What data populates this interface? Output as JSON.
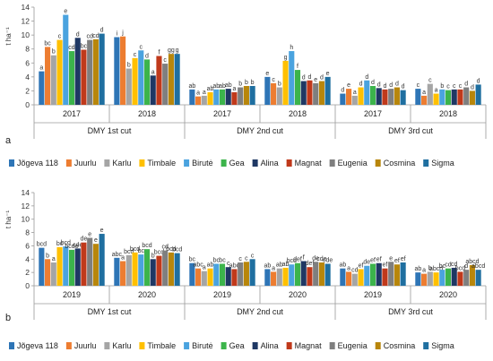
{
  "colors": {
    "Jõgeva 118": "#2e75b6",
    "Juurlu": "#ed7d31",
    "Karlu": "#a5a5a5",
    "Timbale": "#ffc000",
    "Birutė": "#4aa3df",
    "Gea": "#3cb44b",
    "Alina": "#1f3864",
    "Magnat": "#c0391b",
    "Eugenia": "#7f7f7f",
    "Cosmina": "#b8860b",
    "Sigma": "#1f6fa0"
  },
  "chart_data": [
    {
      "type": "bar",
      "panel_label": "a",
      "ylabel": "t ha⁻¹",
      "ylim": [
        0,
        14
      ],
      "yticks": [
        0,
        2,
        4,
        6,
        8,
        10,
        12,
        14
      ],
      "groups": [
        {
          "year": "2017",
          "cut": "DMY 1st cut"
        },
        {
          "year": "2018",
          "cut": "DMY 1st cut"
        },
        {
          "year": "2017",
          "cut": "DMY 2nd cut"
        },
        {
          "year": "2018",
          "cut": "DMY 2nd cut"
        },
        {
          "year": "2017",
          "cut": "DMY 3rd cut"
        },
        {
          "year": "2018",
          "cut": "DMY 3rd cut"
        }
      ],
      "cut_labels": [
        "DMY 1st cut",
        "DMY 2nd cut",
        "DMY 3rd cut"
      ],
      "series": [
        {
          "name": "Jõgeva 118",
          "values": [
            4.8,
            9.7,
            2.2,
            4.0,
            1.6,
            2.3
          ]
        },
        {
          "name": "Juurlu",
          "values": [
            8.3,
            9.8,
            1.2,
            3.1,
            2.3,
            1.3
          ]
        },
        {
          "name": "Karlu",
          "values": [
            7.1,
            5.2,
            1.3,
            2.5,
            1.3,
            3.0
          ]
        },
        {
          "name": "Timbale",
          "values": [
            9.3,
            6.7,
            1.8,
            6.3,
            2.5,
            1.6
          ]
        },
        {
          "name": "Birutė",
          "values": [
            12.9,
            7.8,
            2.2,
            7.7,
            3.5,
            2.2
          ]
        },
        {
          "name": "Gea",
          "values": [
            7.7,
            6.5,
            2.2,
            5.0,
            2.7,
            2.1
          ]
        },
        {
          "name": "Alina",
          "values": [
            9.6,
            4.2,
            2.3,
            3.4,
            2.4,
            2.2
          ]
        },
        {
          "name": "Magnat",
          "values": [
            7.9,
            7.0,
            1.8,
            3.5,
            2.2,
            2.2
          ]
        },
        {
          "name": "Eugenia",
          "values": [
            9.3,
            5.9,
            2.5,
            3.1,
            2.3,
            2.5
          ]
        },
        {
          "name": "Cosmina",
          "values": [
            9.4,
            7.3,
            2.7,
            3.4,
            2.5,
            2.0
          ]
        },
        {
          "name": "Sigma",
          "values": [
            10.2,
            7.3,
            2.7,
            4.0,
            2.1,
            2.9
          ]
        }
      ],
      "letters": [
        [
          "a",
          "bc",
          "b",
          "c",
          "e",
          "cd",
          "d",
          "bc",
          "cd",
          "cd",
          "d"
        ],
        [
          "i",
          "j",
          "b",
          "c",
          "c",
          "d",
          "a",
          "f",
          "c",
          "gg",
          "g"
        ],
        [
          "ab",
          "a",
          "a",
          "ab",
          "ab",
          "ab",
          "ab",
          "a",
          "b",
          "b",
          "b"
        ],
        [
          "e",
          "c",
          "b",
          "g",
          "h",
          "f",
          "d",
          "d",
          "e",
          "d",
          "e"
        ],
        [
          "d",
          "e",
          "a",
          "d",
          "d",
          "d",
          "d",
          "d",
          "d",
          "d",
          "d"
        ],
        [
          "c",
          "a",
          "c",
          "a",
          "b",
          "c",
          "c",
          "c",
          "d",
          "d",
          "d"
        ]
      ]
    },
    {
      "type": "bar",
      "panel_label": "b",
      "ylabel": "t ha⁻¹",
      "ylim": [
        0,
        14
      ],
      "yticks": [
        0,
        2,
        4,
        6,
        8,
        10,
        12,
        14
      ],
      "groups": [
        {
          "year": "2019",
          "cut": "DMY 1st cut"
        },
        {
          "year": "2020",
          "cut": "DMY 1st cut"
        },
        {
          "year": "2019",
          "cut": "DMY 2nd cut"
        },
        {
          "year": "2020",
          "cut": "DMY 2nd cut"
        },
        {
          "year": "2019",
          "cut": "DMY 3rd cut"
        },
        {
          "year": "2020",
          "cut": "DMY 3rd cut"
        }
      ],
      "cut_labels": [
        "DMY 1st cut",
        "DMY 2nd cut",
        "DMY 3rd cut"
      ],
      "series": [
        {
          "name": "Jõgeva 118",
          "values": [
            5.7,
            4.2,
            3.4,
            2.5,
            2.6,
            2.0
          ]
        },
        {
          "name": "Juurlu",
          "values": [
            4.0,
            3.7,
            2.6,
            2.1,
            2.1,
            1.8
          ]
        },
        {
          "name": "Karlu",
          "values": [
            3.5,
            4.6,
            2.2,
            2.6,
            1.8,
            2.1
          ]
        },
        {
          "name": "Timbale",
          "values": [
            5.8,
            5.0,
            2.6,
            2.7,
            2.5,
            2.0
          ]
        },
        {
          "name": "Birutė",
          "values": [
            5.9,
            4.7,
            3.3,
            3.2,
            3.0,
            2.4
          ]
        },
        {
          "name": "Gea",
          "values": [
            5.4,
            5.5,
            3.3,
            3.4,
            3.3,
            2.6
          ]
        },
        {
          "name": "Alina",
          "values": [
            5.6,
            4.0,
            2.8,
            3.7,
            3.4,
            2.7
          ]
        },
        {
          "name": "Magnat",
          "values": [
            6.5,
            4.5,
            2.5,
            2.8,
            2.6,
            2.1
          ]
        },
        {
          "name": "Eugenia",
          "values": [
            7.2,
            5.3,
            3.5,
            3.6,
            3.6,
            2.4
          ]
        },
        {
          "name": "Cosmina",
          "values": [
            6.3,
            5.0,
            3.6,
            3.5,
            3.2,
            3.1
          ]
        },
        {
          "name": "Sigma",
          "values": [
            7.8,
            4.9,
            4.0,
            3.3,
            3.5,
            2.4
          ]
        }
      ],
      "letters": [
        [
          "bcd",
          "b",
          "a",
          "bc",
          "bcd",
          "bcde",
          "cde",
          "de",
          "e",
          "e",
          "e"
        ],
        [
          "abc",
          "a",
          "bcd",
          "bcd",
          "bc",
          "bcd",
          "b",
          "bcd",
          "cd",
          "bcd",
          "bcd"
        ],
        [
          "bc",
          "abc",
          "a",
          "ab",
          "bc",
          "bc",
          "c",
          "abc",
          "c",
          "c",
          "c"
        ],
        [
          "ab",
          "a",
          "ab",
          "ab",
          "bcd",
          "def",
          "f",
          "def",
          "de",
          "cde",
          "cde"
        ],
        [
          "ab",
          "a",
          "cd",
          "ef",
          "de",
          "ef",
          "ef",
          "ef",
          "e",
          "ef",
          "ef"
        ],
        [
          "ab",
          "a",
          "b",
          "abcd",
          "bc",
          "cd",
          "cd",
          "bcd",
          "d",
          "abcd",
          "abcd"
        ]
      ]
    }
  ]
}
